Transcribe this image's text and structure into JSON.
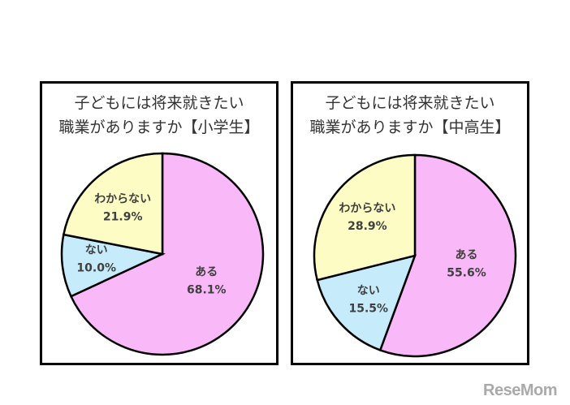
{
  "chart_data": [
    {
      "type": "pie",
      "title_lines": [
        "子どもには将来就きたい",
        "職業がありますか【小学生】"
      ],
      "slices": [
        {
          "label": "ある",
          "value": 68.1,
          "value_label": "68.1%",
          "color": "#F9B8F7"
        },
        {
          "label": "ない",
          "value": 10.0,
          "value_label": "10.0%",
          "color": "#C6EBFA"
        },
        {
          "label": "わからない",
          "value": 21.9,
          "value_label": "21.9%",
          "color": "#FCFCC4"
        }
      ]
    },
    {
      "type": "pie",
      "title_lines": [
        "子どもには将来就きたい",
        "職業がありますか【中高生】"
      ],
      "slices": [
        {
          "label": "ある",
          "value": 55.6,
          "value_label": "55.6%",
          "color": "#F9B8F7"
        },
        {
          "label": "ない",
          "value": 15.5,
          "value_label": "15.5%",
          "color": "#C6EBFA"
        },
        {
          "label": "わからない",
          "value": 28.9,
          "value_label": "28.9%",
          "color": "#FCFCC4"
        }
      ]
    }
  ],
  "watermark": "ReseMom"
}
